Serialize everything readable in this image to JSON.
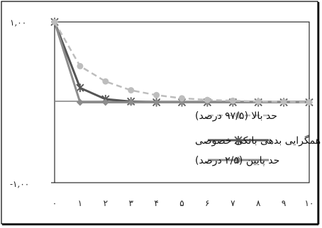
{
  "chart_data": {
    "type": "line",
    "title": "",
    "xlabel": "",
    "ylabel": "",
    "x": [
      0,
      1,
      2,
      3,
      4,
      5,
      6,
      7,
      8,
      9,
      10
    ],
    "x_tick_labels": [
      "۰",
      "۱",
      "۲",
      "۳",
      "۴",
      "۵",
      "۶",
      "۷",
      "۸",
      "۹",
      "۱۰"
    ],
    "ylim": [
      -1.0,
      1.0
    ],
    "y_tick_labels": [
      {
        "value": 1.0,
        "label": "۱,۰۰"
      },
      {
        "value": -1.0,
        "label": "-۱,۰۰"
      }
    ],
    "grid": false,
    "legend_position": "center",
    "series": [
      {
        "name": "حد بالا (۹۷/۵ درصد)",
        "color": "#bdbdbd",
        "line_style": "dashed",
        "marker": "circle",
        "values": [
          1.0,
          0.45,
          0.26,
          0.15,
          0.09,
          0.05,
          0.03,
          0.02,
          0.01,
          0.005,
          0.0
        ]
      },
      {
        "name": "همگرایی بدهی بانکی خصوصی",
        "color": "#555555",
        "line_style": "solid",
        "marker": "asterisk",
        "values": [
          1.0,
          0.18,
          0.04,
          0.01,
          0.0,
          0.0,
          0.0,
          0.0,
          0.0,
          0.0,
          0.0
        ]
      },
      {
        "name": "حد پایین (۲/۵ درصد)",
        "color": "#8c8c8c",
        "line_style": "solid",
        "marker": "diamond",
        "values": [
          1.0,
          0.0,
          0.0,
          0.0,
          0.0,
          0.0,
          0.0,
          0.0,
          0.0,
          0.0,
          0.0
        ]
      }
    ]
  }
}
